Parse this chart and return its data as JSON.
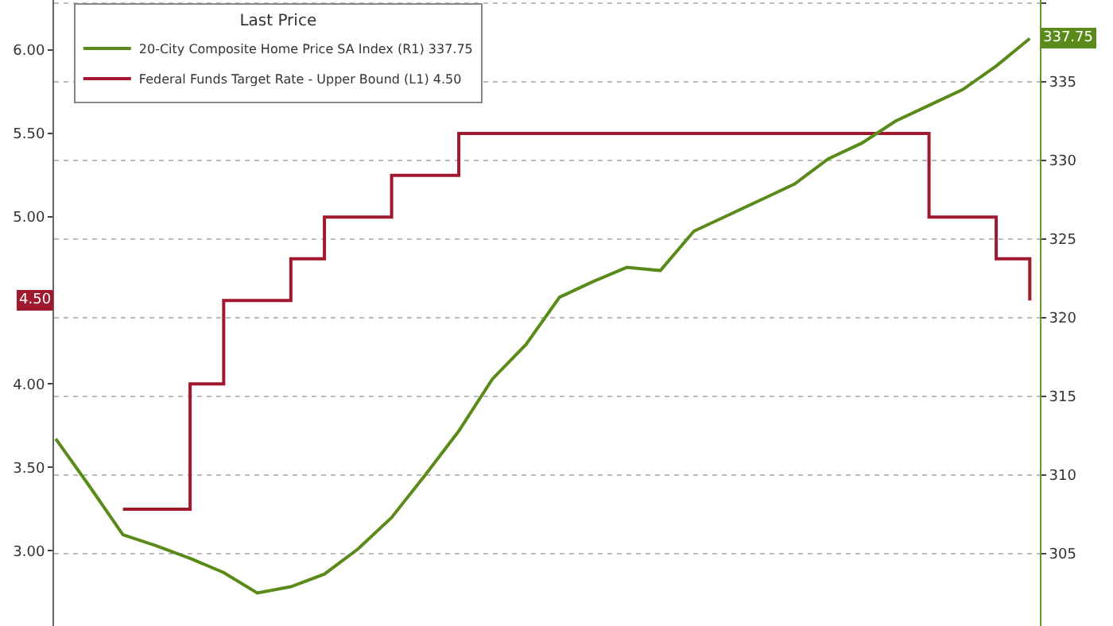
{
  "chart_data": {
    "type": "line",
    "legend_title": "Last Price",
    "categories": [
      null,
      null,
      null,
      null,
      null,
      null,
      null,
      null,
      null,
      null,
      null,
      null,
      null,
      null,
      null,
      null,
      null,
      null,
      null,
      null,
      null,
      null,
      null,
      null,
      null,
      null,
      null,
      null,
      null,
      null
    ],
    "series": [
      {
        "name": "20-City Composite Home Price SA Index (R1) 337.75",
        "color": "#5a8a1a",
        "axis": "y2",
        "values": [
          312.3,
          309.3,
          306.2,
          305.5,
          304.7,
          303.8,
          302.5,
          302.9,
          303.7,
          305.3,
          307.3,
          310.0,
          312.8,
          316.1,
          318.3,
          321.3,
          322.3,
          323.2,
          323.0,
          325.5,
          326.5,
          327.5,
          328.5,
          330.1,
          331.1,
          332.5,
          333.5,
          334.5,
          336.0,
          337.75
        ]
      },
      {
        "name": "Federal Funds Target Rate - Upper Bound (L1) 4.50",
        "color": "#a0192e",
        "type": "step",
        "values": [
          null,
          null,
          3.25,
          3.25,
          4.0,
          4.5,
          4.5,
          4.75,
          5.0,
          5.0,
          5.25,
          5.25,
          5.5,
          5.5,
          5.5,
          5.5,
          5.5,
          5.5,
          5.5,
          5.5,
          5.5,
          5.5,
          5.5,
          5.5,
          5.5,
          5.5,
          5.0,
          5.0,
          4.75,
          4.5
        ]
      }
    ],
    "annotations": [
      "337.75",
      "4.50"
    ],
    "ylim": [
      2.55,
      6.3
    ],
    "yticks": [
      {
        "value": 3.0,
        "label": "3.00"
      },
      {
        "value": 3.5,
        "label": "3.50"
      },
      {
        "value": 4.0,
        "label": "4.00"
      },
      {
        "value": 4.5,
        "label": null
      },
      {
        "value": 5.0,
        "label": "5.00"
      },
      {
        "value": 5.5,
        "label": "5.50"
      },
      {
        "value": 6.0,
        "label": "6.00"
      }
    ],
    "y2lim": [
      300.4,
      340.2
    ],
    "y2ticks": [
      305,
      310,
      315,
      320,
      325,
      330,
      335,
      {
        "value": 340,
        "label": null
      }
    ],
    "grid": "y",
    "legend": "top left",
    "marker": "none",
    "line_style": "solid"
  }
}
